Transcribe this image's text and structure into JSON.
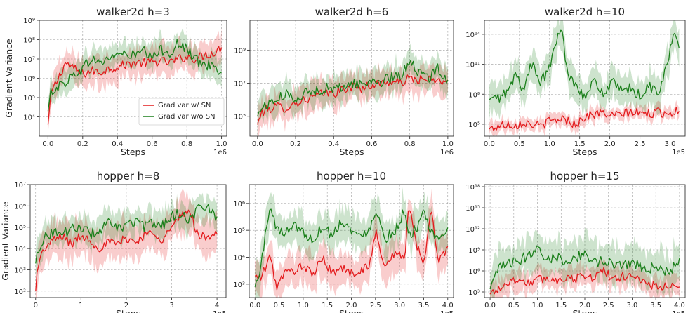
{
  "colors": {
    "sn": "#e31a1c",
    "nosn": "#1a7f1a"
  },
  "legend": {
    "sn": "Grad var w/ SN",
    "nosn": "Grad var w/o SN"
  },
  "chart_data": [
    {
      "type": "line",
      "title": "walker2d h=3",
      "xlabel": "Steps",
      "ylabel": "Gradient Variance",
      "log_y": true,
      "xlim": [
        -0.05,
        1.03
      ],
      "ylim_exp": [
        3.0,
        9.0
      ],
      "xticks": [
        0,
        0.2,
        0.4,
        0.6,
        0.8,
        1.0
      ],
      "xtick_labels": [
        "0.0",
        "0.2",
        "0.4",
        "0.6",
        "0.8",
        "1.0"
      ],
      "x_multiplier": "1e6",
      "yticks_exp": [
        4,
        5,
        6,
        7,
        8,
        9
      ],
      "ytick_labels": [
        "10⁴",
        "10⁵",
        "10⁶",
        "10⁷",
        "10⁸",
        "10⁹"
      ],
      "legend": "lower-right",
      "x": [
        0.0,
        0.02,
        0.05,
        0.1,
        0.15,
        0.2,
        0.25,
        0.3,
        0.35,
        0.4,
        0.45,
        0.5,
        0.55,
        0.6,
        0.65,
        0.7,
        0.75,
        0.8,
        0.85,
        0.9,
        0.95,
        1.0
      ],
      "series": [
        {
          "key": "sn",
          "y_exp": [
            3.6,
            5.3,
            5.8,
            6.8,
            6.5,
            6.2,
            6.4,
            6.3,
            6.5,
            6.6,
            6.7,
            6.8,
            6.8,
            6.8,
            6.9,
            6.8,
            7.0,
            7.1,
            7.0,
            7.2,
            7.3,
            7.6
          ],
          "band": 0.7
        },
        {
          "key": "nosn",
          "y_exp": [
            4.3,
            5.4,
            5.5,
            5.8,
            6.2,
            6.5,
            7.0,
            6.8,
            7.0,
            7.3,
            7.2,
            7.2,
            7.4,
            7.0,
            7.5,
            7.3,
            7.8,
            7.5,
            7.0,
            6.6,
            6.8,
            6.3
          ],
          "band": 0.6
        }
      ]
    },
    {
      "type": "line",
      "title": "walker2d h=6",
      "xlabel": "Steps",
      "ylabel": "",
      "log_y": true,
      "xlim": [
        -0.04,
        1.03
      ],
      "ylim_exp": [
        3.8,
        10.8
      ],
      "xticks": [
        0,
        0.2,
        0.4,
        0.6,
        0.8,
        1.0
      ],
      "xtick_labels": [
        "0.0",
        "0.2",
        "0.4",
        "0.6",
        "0.8",
        "1.0"
      ],
      "x_multiplier": "1e6",
      "yticks_exp": [
        5,
        7,
        9
      ],
      "ytick_labels": [
        "10⁵",
        "10⁷",
        "10⁹"
      ],
      "x": [
        0.0,
        0.02,
        0.05,
        0.1,
        0.15,
        0.2,
        0.25,
        0.3,
        0.35,
        0.4,
        0.45,
        0.5,
        0.55,
        0.6,
        0.65,
        0.7,
        0.75,
        0.8,
        0.85,
        0.9,
        0.95,
        1.0
      ],
      "series": [
        {
          "key": "sn",
          "y_exp": [
            4.5,
            5.2,
            5.4,
            5.6,
            5.5,
            5.8,
            6.0,
            6.2,
            6.4,
            6.4,
            6.6,
            6.8,
            6.7,
            6.9,
            7.0,
            7.1,
            7.0,
            7.3,
            7.2,
            7.2,
            7.1,
            7.2
          ],
          "band": 0.8
        },
        {
          "key": "nosn",
          "y_exp": [
            5.0,
            5.5,
            5.7,
            6.0,
            6.3,
            6.1,
            6.4,
            6.5,
            6.7,
            6.6,
            6.8,
            7.0,
            6.9,
            7.2,
            7.1,
            7.3,
            7.4,
            8.4,
            7.6,
            7.3,
            7.9,
            7.2
          ],
          "band": 0.8
        }
      ]
    },
    {
      "type": "line",
      "title": "walker2d h=10",
      "xlabel": "Steps",
      "ylabel": "",
      "log_y": true,
      "xlim": [
        -0.08,
        3.25
      ],
      "ylim_exp": [
        3.8,
        15.4
      ],
      "xticks": [
        0,
        0.5,
        1.0,
        1.5,
        2.0,
        2.5,
        3.0
      ],
      "xtick_labels": [
        "0.0",
        "0.5",
        "1.0",
        "1.5",
        "2.0",
        "2.5",
        "3.0"
      ],
      "x_multiplier": "1e5",
      "yticks_exp": [
        5,
        8,
        11,
        14
      ],
      "ytick_labels": [
        "10⁵",
        "10⁸",
        "10¹¹",
        "10¹⁴"
      ],
      "x": [
        0.0,
        0.15,
        0.3,
        0.45,
        0.55,
        0.7,
        0.85,
        1.0,
        1.1,
        1.2,
        1.3,
        1.45,
        1.6,
        1.75,
        1.9,
        2.05,
        2.2,
        2.35,
        2.5,
        2.65,
        2.8,
        2.95,
        3.05,
        3.15
      ],
      "series": [
        {
          "key": "sn",
          "y_exp": [
            4.5,
            4.8,
            5.0,
            4.9,
            5.2,
            5.0,
            4.8,
            5.3,
            5.4,
            5.6,
            5.3,
            5.0,
            5.8,
            6.0,
            6.1,
            5.8,
            6.0,
            6.2,
            6.1,
            6.0,
            6.2,
            6.1,
            6.2,
            6.3
          ],
          "band": 0.6
        },
        {
          "key": "nosn",
          "y_exp": [
            7.4,
            7.6,
            8.2,
            10.0,
            8.4,
            11.0,
            9.2,
            10.5,
            13.2,
            14.6,
            10.0,
            9.0,
            7.6,
            9.4,
            8.0,
            9.2,
            8.2,
            8.6,
            7.8,
            8.8,
            8.2,
            10.8,
            14.0,
            12.6
          ],
          "band": 1.5
        }
      ]
    },
    {
      "type": "line",
      "title": "hopper h=8",
      "xlabel": "Steps",
      "ylabel": "Gradient Variance",
      "log_y": true,
      "xlim": [
        -0.12,
        4.2
      ],
      "ylim_exp": [
        1.7,
        7.0
      ],
      "xticks": [
        0,
        1,
        2,
        3,
        4
      ],
      "xtick_labels": [
        "0",
        "1",
        "2",
        "3",
        "4"
      ],
      "x_multiplier": "1e5",
      "yticks_exp": [
        2,
        3,
        4,
        5,
        6,
        7
      ],
      "ytick_labels": [
        "10²",
        "10³",
        "10⁴",
        "10⁵",
        "10⁶",
        "10⁷"
      ],
      "x": [
        0.0,
        0.05,
        0.2,
        0.4,
        0.6,
        0.8,
        1.0,
        1.2,
        1.4,
        1.6,
        1.8,
        2.0,
        2.2,
        2.4,
        2.6,
        2.8,
        3.0,
        3.2,
        3.4,
        3.6,
        3.8,
        4.0
      ],
      "series": [
        {
          "key": "sn",
          "y_exp": [
            2.0,
            3.3,
            4.0,
            4.4,
            4.6,
            4.2,
            4.6,
            4.4,
            4.0,
            4.3,
            4.2,
            4.5,
            4.3,
            4.6,
            4.8,
            4.4,
            5.0,
            5.5,
            5.8,
            4.5,
            4.6,
            4.7
          ],
          "band": 0.8
        },
        {
          "key": "nosn",
          "y_exp": [
            3.3,
            4.0,
            4.5,
            4.8,
            4.7,
            4.9,
            5.0,
            4.7,
            4.8,
            5.2,
            4.9,
            5.1,
            5.3,
            5.0,
            5.2,
            5.1,
            5.5,
            5.7,
            5.3,
            6.0,
            5.9,
            5.5
          ],
          "band": 0.6
        }
      ]
    },
    {
      "type": "line",
      "title": "hopper h=10",
      "xlabel": "Steps",
      "ylabel": "",
      "log_y": true,
      "xlim": [
        -0.12,
        4.12
      ],
      "ylim_exp": [
        2.5,
        6.7
      ],
      "xticks": [
        0,
        0.5,
        1.0,
        1.5,
        2.0,
        2.5,
        3.0,
        3.5,
        4.0
      ],
      "xtick_labels": [
        "0.0",
        "0.5",
        "1.0",
        "1.5",
        "2.0",
        "2.5",
        "3.0",
        "3.5",
        "4.0"
      ],
      "x_multiplier": "1e5",
      "yticks_exp": [
        3,
        4,
        5,
        6
      ],
      "ytick_labels": [
        "10³",
        "10⁴",
        "10⁵",
        "10⁶"
      ],
      "x": [
        0.0,
        0.1,
        0.2,
        0.3,
        0.45,
        0.6,
        0.8,
        1.0,
        1.2,
        1.4,
        1.6,
        1.8,
        2.0,
        2.2,
        2.4,
        2.5,
        2.7,
        2.9,
        3.1,
        3.2,
        3.35,
        3.5,
        3.65,
        3.8,
        4.0
      ],
      "series": [
        {
          "key": "sn",
          "y_exp": [
            3.3,
            3.2,
            3.5,
            4.1,
            2.9,
            3.4,
            3.5,
            3.7,
            3.3,
            4.0,
            3.4,
            3.6,
            3.4,
            3.5,
            3.8,
            5.0,
            3.6,
            4.2,
            3.9,
            6.0,
            4.5,
            3.6,
            5.9,
            3.8,
            4.4
          ],
          "band": 0.6
        },
        {
          "key": "nosn",
          "y_exp": [
            2.9,
            3.4,
            4.6,
            5.9,
            5.1,
            4.8,
            5.3,
            4.9,
            4.6,
            5.2,
            4.8,
            5.4,
            5.0,
            4.7,
            5.2,
            5.8,
            4.7,
            5.0,
            5.7,
            4.8,
            5.1,
            5.6,
            4.9,
            4.6,
            5.1
          ],
          "band": 0.6
        }
      ]
    },
    {
      "type": "line",
      "title": "hopper h=15",
      "xlabel": "Steps",
      "ylabel": "",
      "log_y": true,
      "xlim": [
        -0.12,
        4.12
      ],
      "ylim_exp": [
        2.2,
        18.3
      ],
      "xticks": [
        0,
        0.5,
        1.0,
        1.5,
        2.0,
        2.5,
        3.0,
        3.5,
        4.0
      ],
      "xtick_labels": [
        "0.0",
        "0.5",
        "1.0",
        "1.5",
        "2.0",
        "2.5",
        "3.0",
        "3.5",
        "4.0"
      ],
      "x_multiplier": "1e5",
      "yticks_exp": [
        3,
        6,
        9,
        12,
        15,
        18
      ],
      "ytick_labels": [
        "10³",
        "10⁶",
        "10⁹",
        "10¹²",
        "10¹⁵",
        "10¹⁸"
      ],
      "x": [
        0.0,
        0.2,
        0.4,
        0.6,
        0.8,
        1.0,
        1.2,
        1.4,
        1.6,
        1.8,
        2.0,
        2.2,
        2.4,
        2.6,
        2.8,
        3.0,
        3.2,
        3.4,
        3.6,
        3.8,
        4.0
      ],
      "series": [
        {
          "key": "sn",
          "y_exp": [
            2.7,
            3.6,
            4.4,
            4.8,
            4.3,
            4.7,
            5.0,
            4.6,
            5.2,
            4.8,
            5.4,
            5.0,
            6.2,
            4.6,
            5.2,
            5.6,
            4.4,
            4.0,
            3.8,
            3.6,
            3.7
          ],
          "band": 1.4
        },
        {
          "key": "nosn",
          "y_exp": [
            3.4,
            6.5,
            7.0,
            7.4,
            8.2,
            9.6,
            7.6,
            8.0,
            7.4,
            7.8,
            8.6,
            7.2,
            7.4,
            6.8,
            7.0,
            7.2,
            6.6,
            6.4,
            6.2,
            5.6,
            7.8
          ],
          "band": 2.5
        }
      ]
    }
  ]
}
